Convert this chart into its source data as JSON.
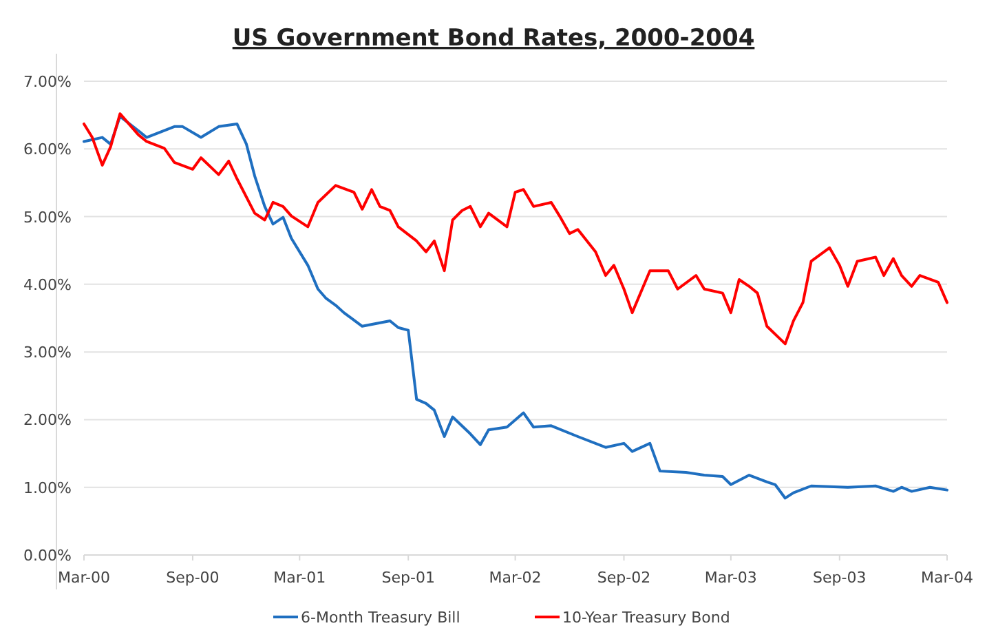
{
  "chart_data": {
    "type": "line",
    "title": "US Government Bond Rates, 2000-2004",
    "xlim": [
      "2000-03-01",
      "2004-03-01"
    ],
    "xticks": [
      {
        "value": "2000-03-01",
        "label": "Mar-00"
      },
      {
        "value": "2000-09-01",
        "label": "Sep-00"
      },
      {
        "value": "2001-03-01",
        "label": "Mar-01"
      },
      {
        "value": "2001-09-01",
        "label": "Sep-01"
      },
      {
        "value": "2002-03-01",
        "label": "Mar-02"
      },
      {
        "value": "2002-09-01",
        "label": "Sep-02"
      },
      {
        "value": "2003-03-01",
        "label": "Mar-03"
      },
      {
        "value": "2003-09-01",
        "label": "Sep-03"
      },
      {
        "value": "2004-03-01",
        "label": "Mar-04"
      }
    ],
    "ylim": [
      0,
      7
    ],
    "yticks": [
      {
        "value": 0,
        "label": "0.00%"
      },
      {
        "value": 1,
        "label": "1.00%"
      },
      {
        "value": 2,
        "label": "2.00%"
      },
      {
        "value": 3,
        "label": "3.00%"
      },
      {
        "value": 4,
        "label": "4.00%"
      },
      {
        "value": 5,
        "label": "5.00%"
      },
      {
        "value": 6,
        "label": "6.00%"
      },
      {
        "value": 7,
        "label": "7.00%"
      }
    ],
    "grid": "y",
    "legend": "bottom",
    "marker": "none",
    "line_style": "solid",
    "series": [
      {
        "name": "6-Month Treasury Bill",
        "color": "#1f6fc0",
        "x": [
          "2000-03-01",
          "2000-04-01",
          "2000-04-15",
          "2000-05-01",
          "2000-06-01",
          "2000-06-15",
          "2000-08-01",
          "2000-08-15",
          "2000-09-15",
          "2000-10-15",
          "2000-11-15",
          "2000-12-01",
          "2000-12-15",
          "2001-01-01",
          "2001-01-15",
          "2001-02-01",
          "2001-02-15",
          "2001-03-15",
          "2001-04-01",
          "2001-04-15",
          "2001-05-01",
          "2001-05-15",
          "2001-06-15",
          "2001-08-01",
          "2001-08-15",
          "2001-09-01",
          "2001-09-15",
          "2001-10-01",
          "2001-10-15",
          "2001-11-01",
          "2001-11-15",
          "2001-12-15",
          "2002-01-01",
          "2002-01-15",
          "2002-02-15",
          "2002-03-15",
          "2002-04-01",
          "2002-05-01",
          "2002-06-15",
          "2002-08-01",
          "2002-09-01",
          "2002-09-15",
          "2002-10-15",
          "2002-11-01",
          "2002-12-15",
          "2003-01-15",
          "2003-02-15",
          "2003-03-01",
          "2003-04-01",
          "2003-05-01",
          "2003-05-15",
          "2003-06-01",
          "2003-06-15",
          "2003-07-15",
          "2003-09-15",
          "2003-11-01",
          "2003-12-01",
          "2003-12-15",
          "2004-01-01",
          "2004-02-01",
          "2004-03-01"
        ],
        "values": [
          6.11,
          6.17,
          6.07,
          6.48,
          6.27,
          6.17,
          6.33,
          6.33,
          6.17,
          6.33,
          6.37,
          6.07,
          5.6,
          5.15,
          4.89,
          4.99,
          4.68,
          4.28,
          3.93,
          3.79,
          3.69,
          3.58,
          3.38,
          3.46,
          3.36,
          3.32,
          2.3,
          2.24,
          2.14,
          1.75,
          2.04,
          1.79,
          1.63,
          1.85,
          1.89,
          2.1,
          1.89,
          1.91,
          1.75,
          1.59,
          1.65,
          1.53,
          1.65,
          1.24,
          1.22,
          1.18,
          1.16,
          1.04,
          1.18,
          1.08,
          1.04,
          0.84,
          0.92,
          1.02,
          1.0,
          1.02,
          0.94,
          1.0,
          0.94,
          1.0,
          0.96
        ]
      },
      {
        "name": "10-Year Treasury Bond",
        "color": "#ff0000",
        "x": [
          "2000-03-01",
          "2000-03-15",
          "2000-04-01",
          "2000-04-15",
          "2000-05-01",
          "2000-06-01",
          "2000-06-15",
          "2000-07-15",
          "2000-08-01",
          "2000-09-01",
          "2000-09-15",
          "2000-10-15",
          "2000-11-01",
          "2000-11-15",
          "2000-12-15",
          "2001-01-01",
          "2001-01-15",
          "2001-02-01",
          "2001-02-15",
          "2001-03-15",
          "2001-04-01",
          "2001-05-01",
          "2001-06-01",
          "2001-06-15",
          "2001-07-01",
          "2001-07-15",
          "2001-08-01",
          "2001-08-15",
          "2001-09-15",
          "2001-10-01",
          "2001-10-15",
          "2001-11-01",
          "2001-11-15",
          "2001-12-01",
          "2001-12-15",
          "2002-01-01",
          "2002-01-15",
          "2002-02-15",
          "2002-03-01",
          "2002-03-15",
          "2002-04-01",
          "2002-05-01",
          "2002-05-15",
          "2002-06-01",
          "2002-06-15",
          "2002-07-15",
          "2002-08-01",
          "2002-08-15",
          "2002-09-01",
          "2002-09-15",
          "2002-10-15",
          "2002-11-15",
          "2002-12-01",
          "2003-01-01",
          "2003-01-15",
          "2003-02-15",
          "2003-03-01",
          "2003-03-15",
          "2003-04-01",
          "2003-04-15",
          "2003-05-01",
          "2003-06-01",
          "2003-06-15",
          "2003-07-01",
          "2003-07-15",
          "2003-08-15",
          "2003-09-01",
          "2003-09-15",
          "2003-10-01",
          "2003-11-01",
          "2003-11-15",
          "2003-12-01",
          "2003-12-15",
          "2004-01-01",
          "2004-01-15",
          "2004-02-15",
          "2004-03-01"
        ],
        "values": [
          6.37,
          6.17,
          5.76,
          6.03,
          6.52,
          6.21,
          6.11,
          6.01,
          5.8,
          5.7,
          5.87,
          5.62,
          5.82,
          5.56,
          5.05,
          4.95,
          5.21,
          5.15,
          5.01,
          4.85,
          5.21,
          5.46,
          5.36,
          5.11,
          5.4,
          5.15,
          5.09,
          4.85,
          4.64,
          4.48,
          4.64,
          4.2,
          4.95,
          5.09,
          5.15,
          4.85,
          5.05,
          4.85,
          5.36,
          5.4,
          5.15,
          5.21,
          5.01,
          4.75,
          4.81,
          4.48,
          4.13,
          4.28,
          3.93,
          3.58,
          4.2,
          4.2,
          3.93,
          4.13,
          3.93,
          3.87,
          3.58,
          4.07,
          3.97,
          3.87,
          3.38,
          3.12,
          3.46,
          3.73,
          4.34,
          4.54,
          4.28,
          3.97,
          4.34,
          4.4,
          4.13,
          4.38,
          4.13,
          3.97,
          4.13,
          4.03,
          3.73
        ]
      }
    ]
  }
}
